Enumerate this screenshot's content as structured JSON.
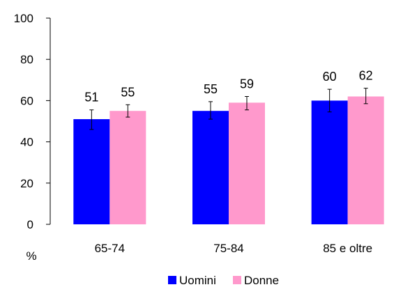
{
  "chart_data": {
    "type": "bar",
    "title": "",
    "xlabel": "",
    "ylabel": "%",
    "ylim": [
      0,
      100
    ],
    "yticks": [
      0,
      20,
      40,
      60,
      80,
      100
    ],
    "grid": false,
    "legend_position": "bottom",
    "categories": [
      "65-74",
      "75-84",
      "85 e oltre"
    ],
    "series": [
      {
        "name": "Uomini",
        "color": "#0000FF",
        "values": [
          51,
          55,
          60
        ],
        "value_labels": [
          "51",
          "55",
          "60"
        ],
        "error": [
          [
            46,
            55.5
          ],
          [
            51,
            59.5
          ],
          [
            54.5,
            65.5
          ]
        ]
      },
      {
        "name": "Donne",
        "color": "#FF99CC",
        "values": [
          55,
          59,
          62
        ],
        "value_labels": [
          "55",
          "59",
          "62"
        ],
        "error": [
          [
            52,
            58
          ],
          [
            55.5,
            62
          ],
          [
            58.5,
            66
          ]
        ]
      }
    ]
  }
}
